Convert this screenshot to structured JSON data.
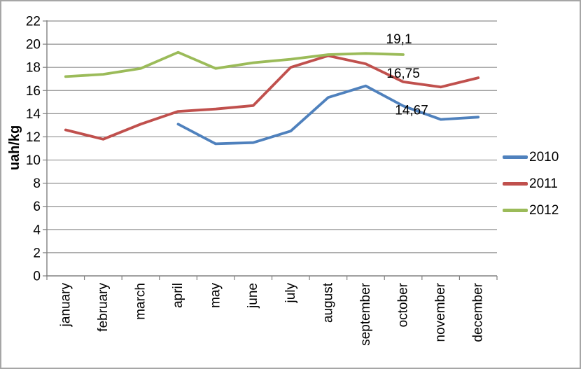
{
  "chart_data": {
    "type": "line",
    "title": "",
    "xlabel": "",
    "ylabel": "uah/kg",
    "ylim": [
      0,
      22
    ],
    "ytick_step": 2,
    "yticks": [
      0,
      2,
      4,
      6,
      8,
      10,
      12,
      14,
      16,
      18,
      20,
      22
    ],
    "grid": true,
    "legend_position": "right",
    "categories": [
      "january",
      "february",
      "march",
      "april",
      "may",
      "june",
      "july",
      "august",
      "september",
      "october",
      "november",
      "december"
    ],
    "series": [
      {
        "name": "2010",
        "color": "#4F81BD",
        "values": [
          null,
          null,
          null,
          13.1,
          11.4,
          11.5,
          12.5,
          15.4,
          16.4,
          14.67,
          13.5,
          13.7
        ]
      },
      {
        "name": "2011",
        "color": "#C0504D",
        "values": [
          12.6,
          11.8,
          13.1,
          14.2,
          14.4,
          14.7,
          18.0,
          19.0,
          18.3,
          16.75,
          16.3,
          17.1
        ]
      },
      {
        "name": "2012",
        "color": "#9BBB59",
        "values": [
          17.2,
          17.4,
          17.9,
          19.3,
          17.9,
          18.4,
          18.7,
          19.1,
          19.2,
          19.1,
          null,
          null
        ]
      }
    ],
    "annotations": [
      {
        "text": "19,1",
        "series": "2012",
        "category": "october"
      },
      {
        "text": "16,75",
        "series": "2011",
        "category": "october"
      },
      {
        "text": "14,67",
        "series": "2010",
        "category": "october"
      }
    ]
  },
  "legend": {
    "items": [
      {
        "label": "2010",
        "color": "#4F81BD"
      },
      {
        "label": "2011",
        "color": "#C0504D"
      },
      {
        "label": "2012",
        "color": "#9BBB59"
      }
    ]
  },
  "style_colors": {
    "gridline": "#909090",
    "axis": "#808080",
    "frame_border": "#a6a6a6",
    "text": "#000000"
  }
}
